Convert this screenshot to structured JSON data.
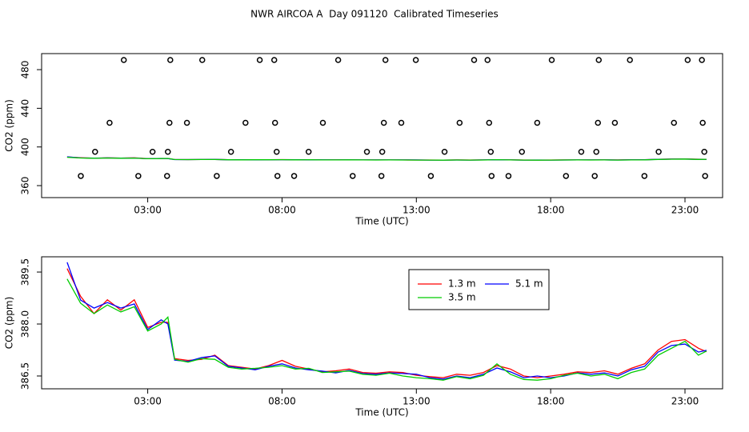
{
  "chart_data": [
    {
      "type": "scatter",
      "title": "NWR AIRCOA A  Day 091120  Calibrated Timeseries",
      "x_label": "Time (UTC)",
      "y_label": "CO2 (ppm)",
      "xlim": [
        -0.95,
        24.4
      ],
      "ylim": [
        347.6,
        496.6
      ],
      "xticks": [
        {
          "value": 3,
          "label": "03:00"
        },
        {
          "value": 8,
          "label": "08:00"
        },
        {
          "value": 13,
          "label": "13:00"
        },
        {
          "value": 18,
          "label": "18:00"
        },
        {
          "value": 23,
          "label": "23:00"
        }
      ],
      "yticks": [
        360,
        400,
        440,
        480
      ],
      "points": {
        "color": "#000000",
        "x": [
          2.11,
          3.84,
          5.03,
          7.17,
          7.71,
          10.09,
          11.85,
          12.98,
          15.15,
          15.65,
          18.04,
          19.79,
          20.95,
          23.1,
          23.63,
          1.58,
          3.81,
          4.46,
          6.64,
          7.74,
          9.52,
          11.79,
          12.44,
          14.61,
          15.71,
          17.5,
          19.76,
          20.39,
          22.59,
          23.66,
          1.04,
          3.18,
          3.75,
          6.1,
          7.8,
          8.99,
          11.16,
          11.73,
          14.05,
          15.77,
          16.93,
          19.14,
          19.7,
          22.02,
          23.72,
          0.51,
          2.65,
          3.72,
          5.57,
          7.83,
          8.45,
          10.63,
          11.7,
          13.54,
          15.8,
          16.43,
          18.57,
          19.64,
          21.49,
          23.75
        ],
        "values": [
          490,
          490,
          490,
          490,
          490,
          490,
          490,
          490,
          490,
          490,
          490,
          490,
          490,
          490,
          490,
          425,
          425,
          425,
          425,
          425,
          425,
          425,
          425,
          425,
          425,
          425,
          425,
          425,
          425,
          425,
          395,
          395,
          395,
          395,
          395,
          395,
          395,
          395,
          395,
          395,
          395,
          395,
          395,
          395,
          395,
          370,
          370,
          370,
          370,
          370,
          370,
          370,
          370,
          370,
          370,
          370,
          370,
          370,
          370,
          370
        ]
      }
    },
    {
      "type": "line",
      "x_label": "Time (UTC)",
      "y_label": "CO2 (ppm)",
      "xlim": [
        -0.95,
        24.4
      ],
      "ylim": [
        386.13,
        389.94
      ],
      "xticks": [
        {
          "value": 3,
          "label": "03:00"
        },
        {
          "value": 8,
          "label": "08:00"
        },
        {
          "value": 13,
          "label": "13:00"
        },
        {
          "value": 18,
          "label": "18:00"
        },
        {
          "value": 23,
          "label": "23:00"
        }
      ],
      "yticks": [
        386.5,
        {
          "value": 388,
          "label": "388.0"
        },
        389.5
      ],
      "legend": "top-right",
      "x": [
        0,
        0.5,
        1,
        1.5,
        2,
        2.5,
        3,
        3.5,
        3.75,
        4,
        4.5,
        5,
        5.5,
        6,
        6.5,
        7,
        7.5,
        8,
        8.5,
        9,
        9.5,
        10,
        10.5,
        11,
        11.5,
        12,
        12.5,
        13,
        13.5,
        14,
        14.5,
        15,
        15.5,
        16,
        16.5,
        17,
        17.5,
        18,
        18.5,
        19,
        19.5,
        20,
        20.5,
        21,
        21.5,
        22,
        22.5,
        23,
        23.5,
        23.8
      ],
      "series": [
        {
          "name": "1.3 m",
          "color": "#ff0000",
          "values": [
            389.6,
            388.8,
            388.3,
            388.7,
            388.4,
            388.7,
            387.9,
            388.05,
            388.05,
            387.0,
            386.95,
            386.98,
            387.1,
            386.8,
            386.75,
            386.7,
            386.8,
            386.95,
            386.78,
            386.7,
            386.62,
            386.65,
            386.7,
            386.6,
            386.58,
            386.62,
            386.6,
            386.52,
            386.48,
            386.45,
            386.55,
            386.52,
            386.6,
            386.8,
            386.7,
            386.5,
            386.45,
            386.5,
            386.55,
            386.62,
            386.6,
            386.65,
            386.55,
            386.72,
            386.85,
            387.25,
            387.5,
            387.55,
            387.3,
            387.2
          ]
        },
        {
          "name": "5.1 m",
          "color": "#0000ff",
          "values": [
            389.78,
            388.69,
            388.46,
            388.62,
            388.46,
            388.58,
            387.84,
            388.12,
            388.0,
            386.96,
            386.92,
            387.03,
            387.08,
            386.78,
            386.73,
            386.68,
            386.78,
            386.85,
            386.73,
            386.68,
            386.64,
            386.59,
            386.66,
            386.57,
            386.55,
            386.59,
            386.57,
            386.55,
            386.45,
            386.41,
            386.5,
            386.45,
            386.55,
            386.73,
            386.62,
            386.45,
            386.5,
            386.45,
            386.5,
            386.59,
            386.55,
            386.59,
            386.5,
            386.68,
            386.78,
            387.19,
            387.38,
            387.42,
            387.19,
            387.24
          ]
        },
        {
          "name": "3.5 m",
          "color": "#00cc00",
          "values": [
            389.3,
            388.6,
            388.3,
            388.55,
            388.35,
            388.5,
            387.8,
            388.0,
            388.2,
            386.98,
            386.9,
            387.0,
            386.98,
            386.75,
            386.7,
            386.72,
            386.75,
            386.8,
            386.7,
            386.72,
            386.6,
            386.62,
            386.64,
            386.55,
            386.52,
            386.58,
            386.5,
            386.45,
            386.42,
            386.38,
            386.48,
            386.42,
            386.52,
            386.85,
            386.55,
            386.4,
            386.38,
            386.42,
            386.52,
            386.58,
            386.5,
            386.55,
            386.42,
            386.6,
            386.7,
            387.1,
            387.3,
            387.5,
            387.1,
            387.22
          ]
        }
      ]
    }
  ]
}
